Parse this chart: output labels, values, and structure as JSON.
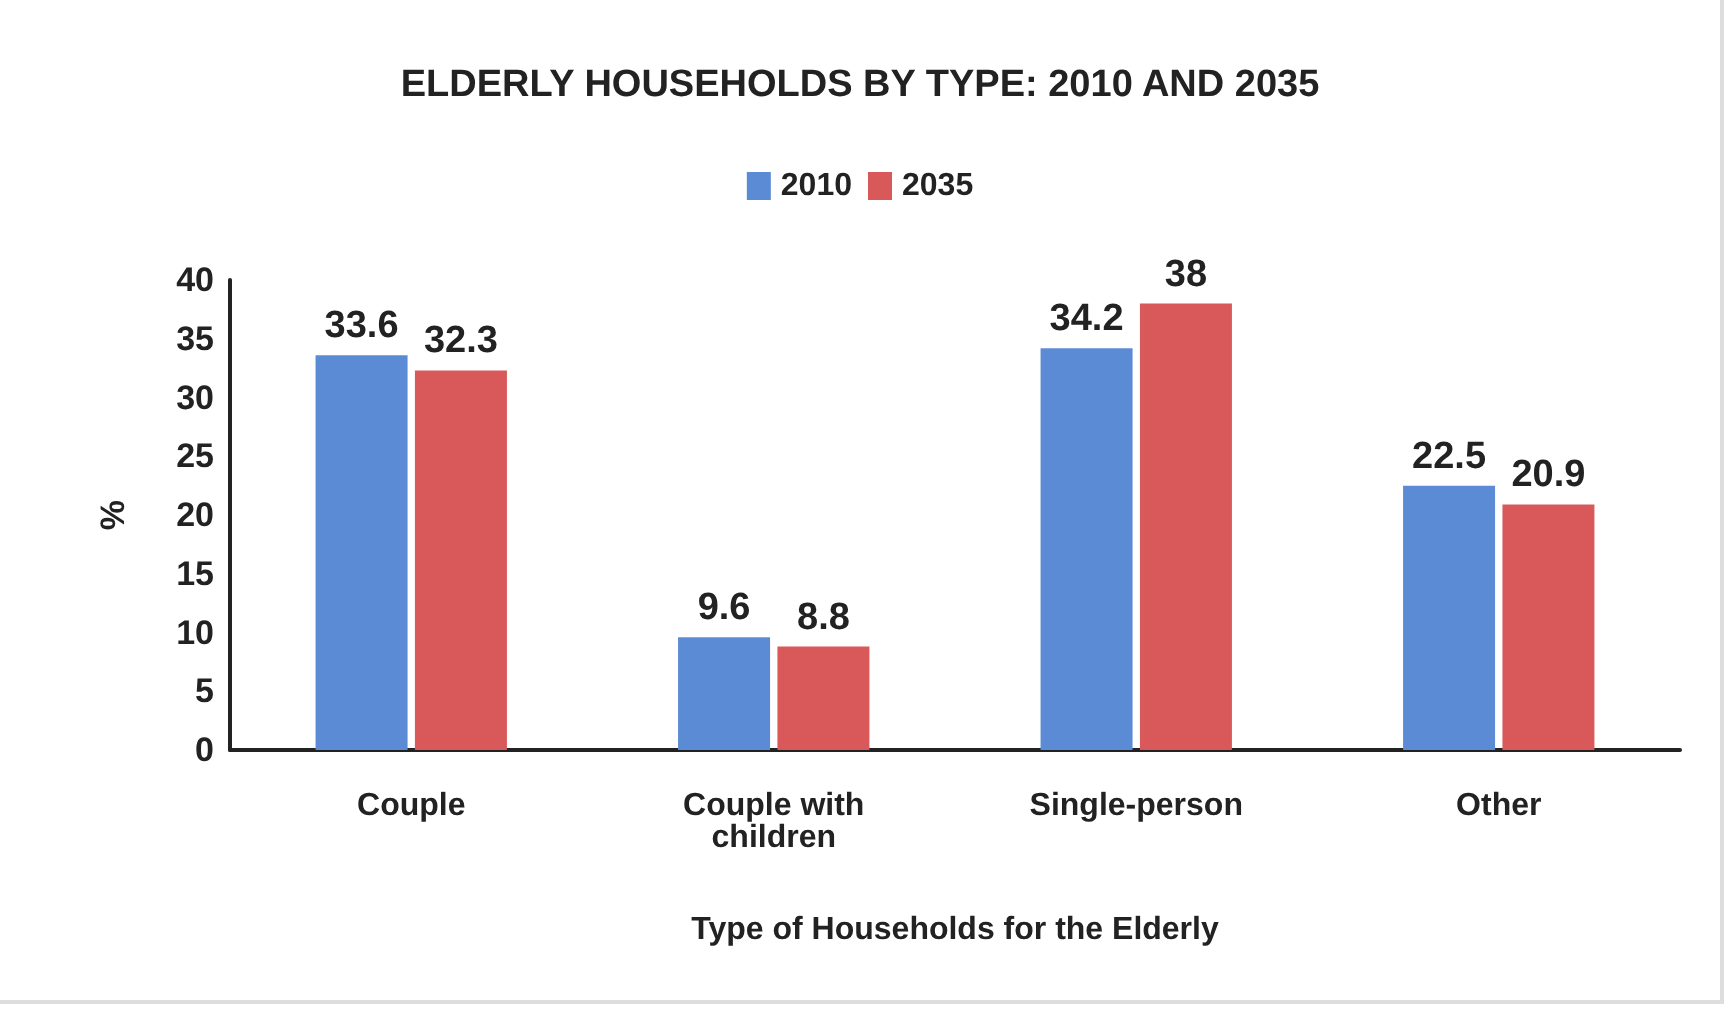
{
  "chart_data": {
    "type": "bar",
    "title": "ELDERLY HOUSEHOLDS BY TYPE: 2010 AND 2035",
    "xlabel": "Type of Households for the Elderly",
    "ylabel": "%",
    "categories": [
      "Couple",
      "Couple with\nchildren",
      "Single-person",
      "Other"
    ],
    "series": [
      {
        "name": "2010",
        "color": "#5b8bd4",
        "values": [
          33.6,
          9.6,
          34.2,
          22.5
        ]
      },
      {
        "name": "2035",
        "color": "#d9585a",
        "values": [
          32.3,
          8.8,
          38,
          20.9
        ]
      }
    ],
    "ylim": [
      0,
      40
    ],
    "yticks": [
      0,
      5,
      10,
      15,
      20,
      25,
      30,
      35,
      40
    ],
    "grid": false,
    "legend": "top",
    "data_labels": true
  }
}
